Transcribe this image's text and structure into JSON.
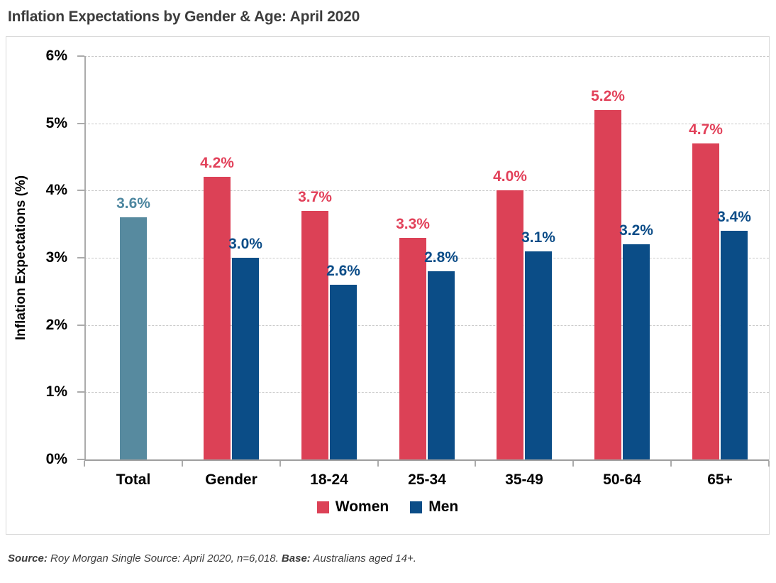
{
  "page": {
    "title": "Inflation Expectations by Gender & Age: April 2020"
  },
  "chart_data": {
    "type": "bar",
    "title": "Inflation Expectations by Gender & Age: April 2020",
    "xlabel": "",
    "ylabel": "Inflation Expectations (%)",
    "ylim": [
      0,
      6
    ],
    "yticks": [
      "0%",
      "1%",
      "2%",
      "3%",
      "4%",
      "5%",
      "6%"
    ],
    "grid": "horizontal-dashed",
    "legend_position": "bottom",
    "categories": [
      "Total",
      "Gender",
      "18-24",
      "25-34",
      "35-49",
      "50-64",
      "65+"
    ],
    "series_colors": {
      "Total": "#578a9f",
      "Women": "#dc4156",
      "Men": "#0b4d87"
    },
    "label_colors": {
      "Total": "#4e87a0",
      "Women": "#e2415a",
      "Men": "#0d4d88"
    },
    "groups": [
      {
        "category": "Total",
        "bars": [
          {
            "series": "Total",
            "value": 3.6,
            "label": "3.6%"
          }
        ]
      },
      {
        "category": "Gender",
        "bars": [
          {
            "series": "Women",
            "value": 4.2,
            "label": "4.2%"
          },
          {
            "series": "Men",
            "value": 3.0,
            "label": "3.0%"
          }
        ]
      },
      {
        "category": "18-24",
        "bars": [
          {
            "series": "Women",
            "value": 3.7,
            "label": "3.7%"
          },
          {
            "series": "Men",
            "value": 2.6,
            "label": "2.6%"
          }
        ]
      },
      {
        "category": "25-34",
        "bars": [
          {
            "series": "Women",
            "value": 3.3,
            "label": "3.3%"
          },
          {
            "series": "Men",
            "value": 2.8,
            "label": "2.8%"
          }
        ]
      },
      {
        "category": "35-49",
        "bars": [
          {
            "series": "Women",
            "value": 4.0,
            "label": "4.0%"
          },
          {
            "series": "Men",
            "value": 3.1,
            "label": "3.1%"
          }
        ]
      },
      {
        "category": "50-64",
        "bars": [
          {
            "series": "Women",
            "value": 5.2,
            "label": "5.2%"
          },
          {
            "series": "Men",
            "value": 3.2,
            "label": "3.2%"
          }
        ]
      },
      {
        "category": "65+",
        "bars": [
          {
            "series": "Women",
            "value": 4.7,
            "label": "4.7%"
          },
          {
            "series": "Men",
            "value": 3.4,
            "label": "3.4%"
          }
        ]
      }
    ],
    "legend": [
      {
        "name": "Women",
        "color": "#dc4156"
      },
      {
        "name": "Men",
        "color": "#0b4d87"
      }
    ]
  },
  "source_note": {
    "source_label": "Source:",
    "source_text": " Roy Morgan Single Source: April 2020, n=6,018. ",
    "base_label": "Base:",
    "base_text": " Australians aged 14+."
  }
}
